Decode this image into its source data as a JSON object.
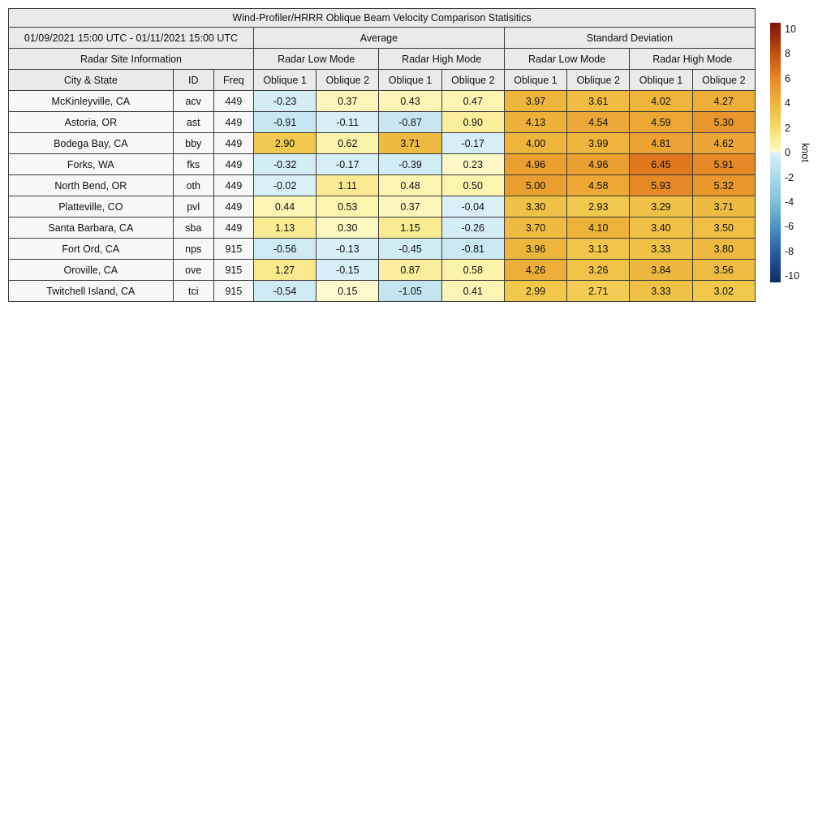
{
  "title": "Wind-Profiler/HRRR Oblique Beam Velocity Comparison Statisitics",
  "header": {
    "date_range": "01/09/2021 15:00 UTC - 01/11/2021 15:00 UTC",
    "group_average": "Average",
    "group_std": "Standard Deviation",
    "site_info": "Radar Site Information",
    "low_mode": "Radar Low Mode",
    "high_mode": "Radar High Mode",
    "col_city": "City & State",
    "col_id": "ID",
    "col_freq": "Freq",
    "oblique1": "Oblique 1",
    "oblique2": "Oblique 2"
  },
  "chart_data": {
    "type": "heatmap",
    "title": "Wind-Profiler/HRRR Oblique Beam Velocity Comparison Statisitics",
    "unit": "knot",
    "value_columns": [
      "Average Radar Low Mode Oblique 1",
      "Average Radar Low Mode Oblique 2",
      "Average Radar High Mode Oblique 1",
      "Average Radar High Mode Oblique 2",
      "Standard Deviation Radar Low Mode Oblique 1",
      "Standard Deviation Radar Low Mode Oblique 2",
      "Standard Deviation Radar High Mode Oblique 1",
      "Standard Deviation Radar High Mode Oblique 2"
    ],
    "colorbar_range": [
      -10,
      10
    ]
  },
  "rows": [
    {
      "city": "McKinleyville, CA",
      "id": "acv",
      "freq": "449",
      "values": [
        "-0.23",
        "0.37",
        "0.43",
        "0.47",
        "3.97",
        "3.61",
        "4.02",
        "4.27"
      ]
    },
    {
      "city": "Astoria, OR",
      "id": "ast",
      "freq": "449",
      "values": [
        "-0.91",
        "-0.11",
        "-0.87",
        "0.90",
        "4.13",
        "4.54",
        "4.59",
        "5.30"
      ]
    },
    {
      "city": "Bodega Bay, CA",
      "id": "bby",
      "freq": "449",
      "values": [
        "2.90",
        "0.62",
        "3.71",
        "-0.17",
        "4.00",
        "3.99",
        "4.81",
        "4.62"
      ]
    },
    {
      "city": "Forks, WA",
      "id": "fks",
      "freq": "449",
      "values": [
        "-0.32",
        "-0.17",
        "-0.39",
        "0.23",
        "4.96",
        "4.96",
        "6.45",
        "5.91"
      ]
    },
    {
      "city": "North Bend, OR",
      "id": "oth",
      "freq": "449",
      "values": [
        "-0.02",
        "1.11",
        "0.48",
        "0.50",
        "5.00",
        "4.58",
        "5.93",
        "5.32"
      ]
    },
    {
      "city": "Platteville, CO",
      "id": "pvl",
      "freq": "449",
      "values": [
        "0.44",
        "0.53",
        "0.37",
        "-0.04",
        "3.30",
        "2.93",
        "3.29",
        "3.71"
      ]
    },
    {
      "city": "Santa Barbara, CA",
      "id": "sba",
      "freq": "449",
      "values": [
        "1.13",
        "0.30",
        "1.15",
        "-0.26",
        "3.70",
        "4.10",
        "3.40",
        "3.50"
      ]
    },
    {
      "city": "Fort Ord, CA",
      "id": "nps",
      "freq": "915",
      "values": [
        "-0.56",
        "-0.13",
        "-0.45",
        "-0.81",
        "3.96",
        "3.13",
        "3.33",
        "3.80"
      ]
    },
    {
      "city": "Oroville, CA",
      "id": "ove",
      "freq": "915",
      "values": [
        "1.27",
        "-0.15",
        "0.87",
        "0.58",
        "4.26",
        "3.26",
        "3.84",
        "3.56"
      ]
    },
    {
      "city": "Twitchell Island, CA",
      "id": "tci",
      "freq": "915",
      "values": [
        "-0.54",
        "0.15",
        "-1.05",
        "0.41",
        "2.99",
        "2.71",
        "3.33",
        "3.02"
      ]
    }
  ],
  "colorbar": {
    "unit": "knot",
    "ticks": [
      "10",
      "8",
      "6",
      "4",
      "2",
      "0",
      "-2",
      "-4",
      "-6",
      "-8",
      "-10"
    ],
    "min": -10.5,
    "max": 10.5,
    "stops": [
      [
        -10.5,
        "#0f2c64"
      ],
      [
        -10.0,
        "#16366f"
      ],
      [
        -8.0,
        "#2a5ea4"
      ],
      [
        -6.0,
        "#4b92c3"
      ],
      [
        -4.0,
        "#7fc0da"
      ],
      [
        -2.0,
        "#a9daea"
      ],
      [
        -1.0,
        "#c5e6f0"
      ],
      [
        -0.02,
        "#d9f0f6"
      ],
      [
        0.02,
        "#fefbdb"
      ],
      [
        0.5,
        "#fdf4ae"
      ],
      [
        1.25,
        "#f9e88d"
      ],
      [
        2.0,
        "#f6d96a"
      ],
      [
        3.0,
        "#f1c74c"
      ],
      [
        4.0,
        "#eeb43c"
      ],
      [
        5.0,
        "#ea9e30"
      ],
      [
        6.0,
        "#e68826"
      ],
      [
        6.5,
        "#e1761b"
      ],
      [
        8.0,
        "#c4520e"
      ],
      [
        9.0,
        "#a5330d"
      ],
      [
        10.5,
        "#7f160a"
      ]
    ]
  },
  "colors": {
    "header_bg": "#eaeaea",
    "info_cell_bg": "#f7f7f7",
    "border": "#3a3a3a",
    "page_bg": "#ffffff"
  }
}
